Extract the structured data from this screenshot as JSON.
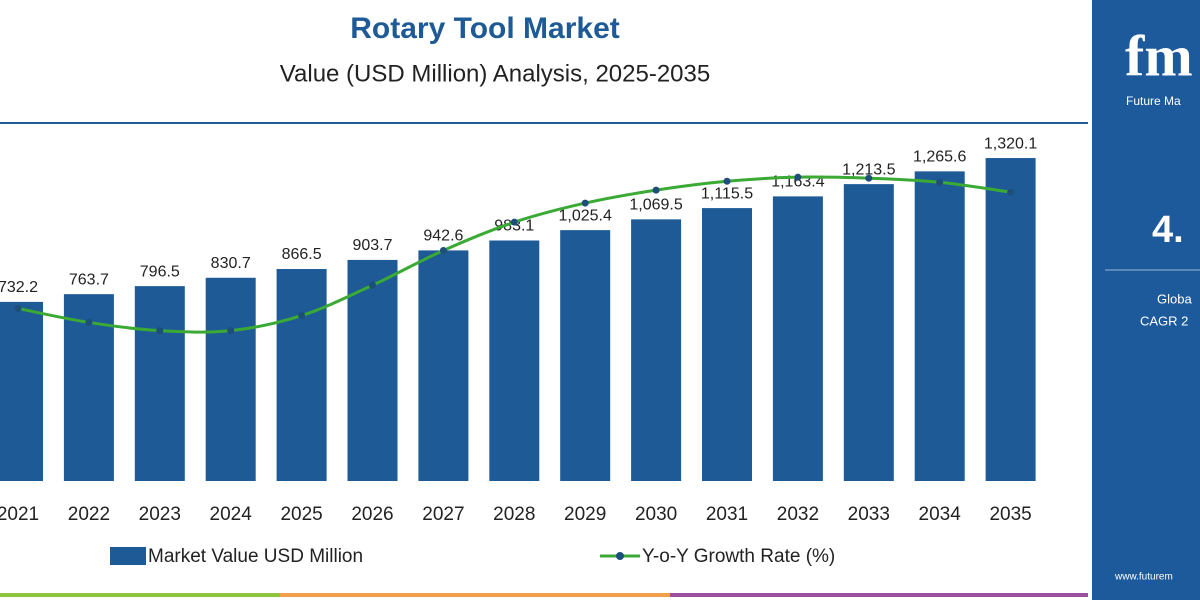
{
  "chart_data": {
    "type": "bar",
    "title": "Rotary Tool Market",
    "subtitle": "Value (USD Million) Analysis, 2025-2035",
    "categories": [
      "2021",
      "2022",
      "2023",
      "2024",
      "2025",
      "2026",
      "2027",
      "2028",
      "2029",
      "2030",
      "2031",
      "2032",
      "2033",
      "2034",
      "2035"
    ],
    "series": [
      {
        "name": "Market Value USD Million",
        "color": "#1d5a96",
        "values": [
          732.2,
          763.7,
          796.5,
          830.7,
          866.5,
          903.7,
          942.6,
          983.1,
          1025.4,
          1069.5,
          1115.5,
          1163.4,
          1213.5,
          1265.6,
          1320.1
        ],
        "value_labels": [
          "732.2",
          "763.7",
          "796.5",
          "830.7",
          "866.5",
          "903.7",
          "942.6",
          "983.1",
          "1,025.4",
          "1,069.5",
          "1,115.5",
          "1,163.4",
          "1,213.5",
          "1,265.6",
          "1,320.1"
        ]
      },
      {
        "name": "Y-o-Y Growth Rate (%)",
        "color": "#3aaa35",
        "type": "line",
        "axis": "y2",
        "values": [
          5.06,
          4.65,
          4.41,
          4.41,
          4.85,
          5.74,
          6.76,
          7.59,
          8.15,
          8.53,
          8.79,
          8.91,
          8.88,
          8.76,
          8.47
        ]
      }
    ],
    "ylim": [
      0,
      1400
    ],
    "y2lim": [
      0,
      10
    ]
  },
  "side_panel": {
    "logo": "fm",
    "brand": "Future Ma",
    "headline": "4.",
    "line1": "Globa",
    "line2": "CAGR 2",
    "url": "www.futurem"
  }
}
